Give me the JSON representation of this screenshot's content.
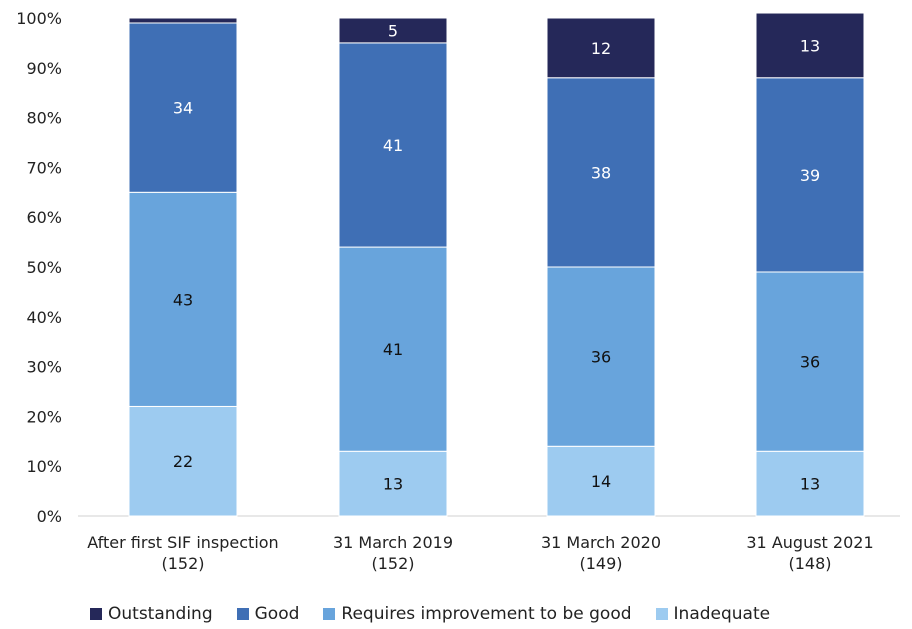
{
  "chart_data": {
    "type": "bar",
    "stacked": true,
    "ylim": [
      0,
      100
    ],
    "yticks": [
      "0%",
      "10%",
      "20%",
      "30%",
      "40%",
      "50%",
      "60%",
      "70%",
      "80%",
      "90%",
      "100%"
    ],
    "categories": [
      [
        "After first SIF inspection",
        "(152)"
      ],
      [
        "31 March 2019",
        "(152)"
      ],
      [
        "31 March 2020",
        "(149)"
      ],
      [
        "31 August 2021",
        "(148)"
      ]
    ],
    "series": [
      {
        "name": "Inadequate",
        "color": "#9dcbf0",
        "values": [
          22,
          13,
          14,
          13
        ],
        "labels": [
          "22",
          "13",
          "14",
          "13"
        ]
      },
      {
        "name": "Requires improvement to be good",
        "color": "#68a4dc",
        "values": [
          43,
          41,
          36,
          36
        ],
        "labels": [
          "43",
          "41",
          "36",
          "36"
        ]
      },
      {
        "name": "Good",
        "color": "#3f6fb5",
        "values": [
          34,
          41,
          38,
          39
        ],
        "labels": [
          "34",
          "41",
          "38",
          "39"
        ]
      },
      {
        "name": "Outstanding",
        "color": "#252859",
        "values": [
          1,
          5,
          12,
          13
        ],
        "labels": [
          "",
          "5",
          "12",
          "13"
        ]
      }
    ],
    "legend_order": [
      "Outstanding",
      "Good",
      "Requires improvement to be good",
      "Inadequate"
    ],
    "legend_position": "bottom"
  }
}
